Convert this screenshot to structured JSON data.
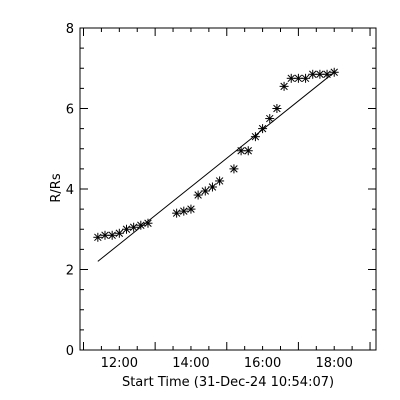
{
  "chart_data": {
    "type": "scatter",
    "xlabel": "Start Time (31-Dec-24 10:54:07)",
    "ylabel": "R/Rs",
    "xlim": [
      "10:54:07",
      "19:10"
    ],
    "ylim": [
      0,
      8
    ],
    "x_ticks": [
      "12:00",
      "14:00",
      "16:00",
      "18:00"
    ],
    "y_ticks": [
      "0",
      "2",
      "4",
      "6",
      "8"
    ],
    "grid": false,
    "legend": "none",
    "series": [
      {
        "mode": "markers",
        "marker": "asterisk",
        "x": [
          "11:24",
          "11:36",
          "11:48",
          "12:00",
          "12:12",
          "12:24",
          "12:36",
          "12:48",
          "13:36",
          "13:48",
          "14:00",
          "14:12",
          "14:24",
          "14:36",
          "14:48",
          "15:12",
          "15:24",
          "15:36",
          "15:48",
          "16:00",
          "16:12",
          "16:24",
          "16:36",
          "16:48",
          "17:00",
          "17:12",
          "17:24",
          "17:36",
          "17:48",
          "18:00"
        ],
        "y": [
          2.8,
          2.85,
          2.85,
          2.9,
          3.0,
          3.05,
          3.1,
          3.15,
          3.4,
          3.45,
          3.5,
          3.85,
          3.95,
          4.05,
          4.2,
          4.5,
          4.95,
          4.95,
          5.3,
          5.5,
          5.75,
          6.0,
          6.55,
          6.75,
          6.75,
          6.75,
          6.85,
          6.85,
          6.85,
          6.9
        ]
      },
      {
        "mode": "line",
        "x": [
          "11:24",
          "18:00"
        ],
        "y": [
          2.2,
          6.9
        ]
      }
    ],
    "colors": {
      "background": "#ffffff",
      "foreground": "#000000"
    }
  }
}
